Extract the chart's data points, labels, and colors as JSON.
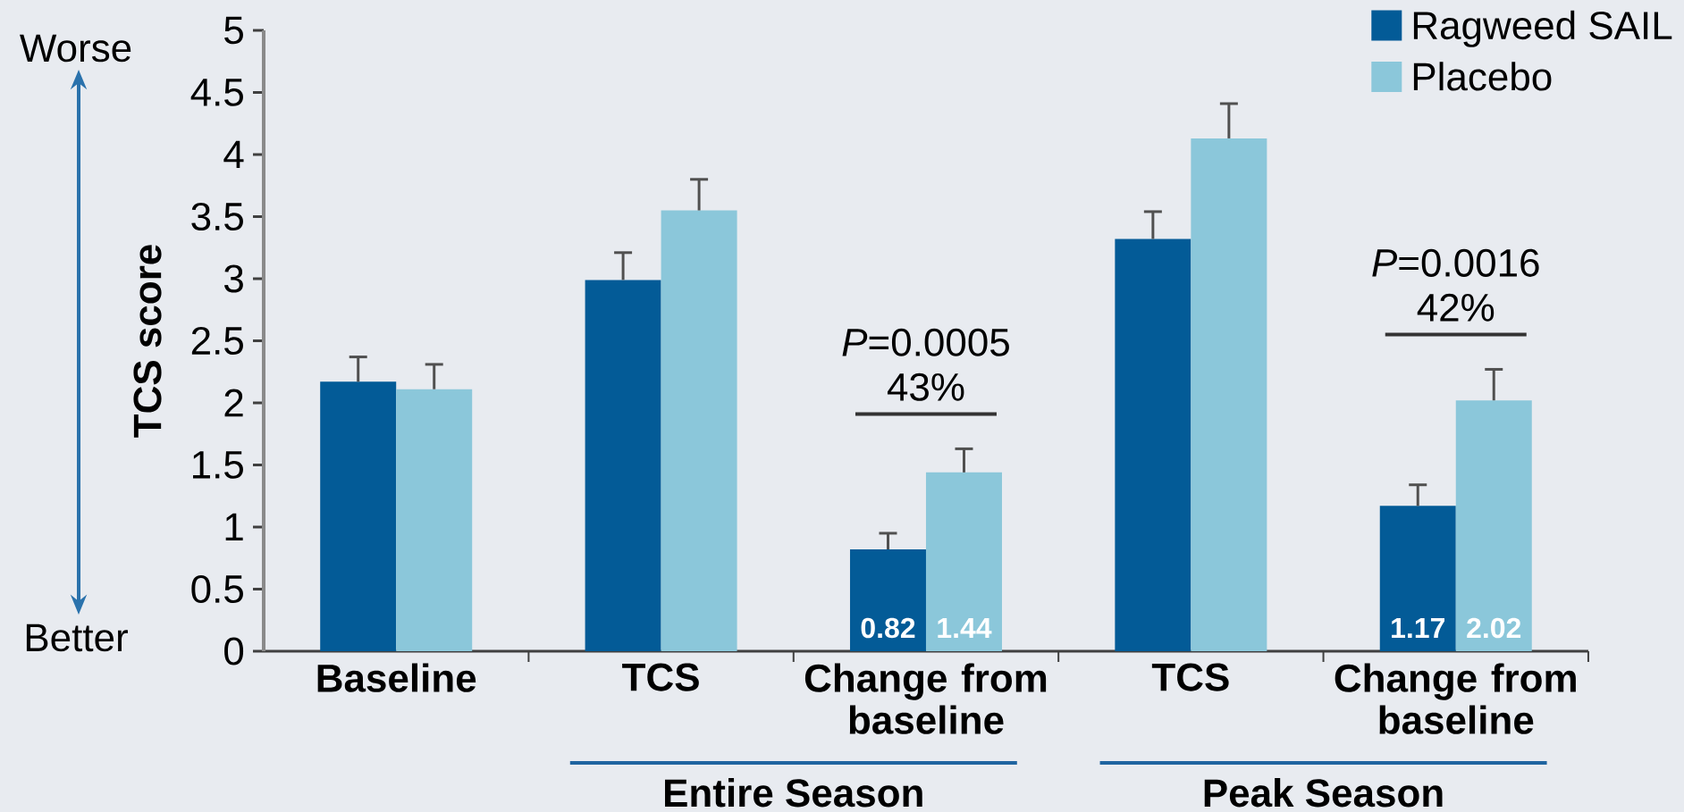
{
  "chart_data": {
    "type": "bar",
    "ylabel": "TCS score",
    "categories": [
      "Baseline",
      "TCS",
      "Change from baseline",
      "TCS",
      "Change from baseline"
    ],
    "series": [
      {
        "name": "Ragweed SAIL",
        "color": "#035b97",
        "values": [
          2.17,
          2.99,
          0.82,
          3.32,
          1.17
        ],
        "errors": [
          [
            2.17,
            2.37
          ],
          [
            2.99,
            3.21
          ],
          [
            0.82,
            0.95
          ],
          [
            3.32,
            3.54
          ],
          [
            1.17,
            1.34
          ]
        ],
        "value_labels": [
          null,
          null,
          "0.82",
          null,
          "1.17"
        ]
      },
      {
        "name": "Placebo",
        "color": "#8bc7da",
        "values": [
          2.11,
          3.55,
          1.44,
          4.13,
          2.02
        ],
        "errors": [
          [
            2.11,
            2.31
          ],
          [
            3.55,
            3.8
          ],
          [
            1.44,
            1.63
          ],
          [
            4.13,
            4.41
          ],
          [
            2.02,
            2.27
          ]
        ],
        "value_labels": [
          null,
          null,
          "1.44",
          null,
          "2.02"
        ]
      }
    ],
    "ylim": [
      0,
      5
    ],
    "yticks": [
      0,
      0.5,
      1,
      1.5,
      2,
      2.5,
      3,
      3.5,
      4,
      4.5,
      5
    ],
    "legend": "top right",
    "annotations": [
      "*P*=0.0005",
      "43%",
      "*P*=0.0016",
      "42%",
      "Entire Season",
      "Peak Season",
      "Worse",
      "Better"
    ]
  }
}
